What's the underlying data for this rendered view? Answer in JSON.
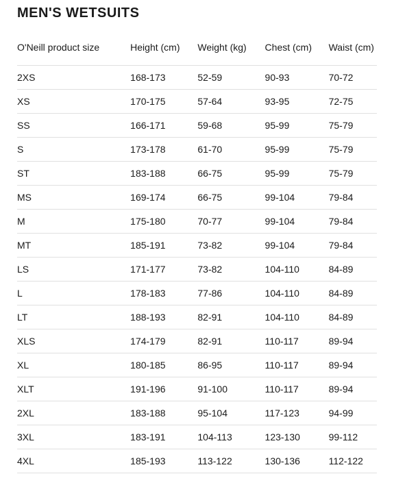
{
  "title": {
    "text": "MEN'S WETSUITS",
    "fontsize": 20,
    "color": "#1a1a1a"
  },
  "table": {
    "header_fontsize": 14,
    "header_color": "#1a1a1a",
    "cell_fontsize": 14,
    "cell_color": "#1a1a1a",
    "border_color": "#e0e0e0",
    "background_color": "#ffffff",
    "columns": [
      "O'Neill product size",
      "Height (cm)",
      "Weight (kg)",
      "Chest (cm)",
      "Waist (cm)"
    ],
    "rows": [
      [
        "2XS",
        "168-173",
        "52-59",
        "90-93",
        "70-72"
      ],
      [
        "XS",
        "170-175",
        "57-64",
        "93-95",
        "72-75"
      ],
      [
        "SS",
        "166-171",
        "59-68",
        "95-99",
        "75-79"
      ],
      [
        "S",
        "173-178",
        "61-70",
        "95-99",
        "75-79"
      ],
      [
        "ST",
        "183-188",
        "66-75",
        "95-99",
        "75-79"
      ],
      [
        "MS",
        "169-174",
        "66-75",
        "99-104",
        "79-84"
      ],
      [
        "M",
        "175-180",
        "70-77",
        "99-104",
        "79-84"
      ],
      [
        "MT",
        "185-191",
        "73-82",
        "99-104",
        "79-84"
      ],
      [
        "LS",
        "171-177",
        "73-82",
        "104-110",
        "84-89"
      ],
      [
        "L",
        "178-183",
        "77-86",
        "104-110",
        "84-89"
      ],
      [
        "LT",
        "188-193",
        "82-91",
        "104-110",
        "84-89"
      ],
      [
        "XLS",
        "174-179",
        "82-91",
        "110-117",
        "89-94"
      ],
      [
        "XL",
        "180-185",
        "86-95",
        "110-117",
        "89-94"
      ],
      [
        "XLT",
        "191-196",
        "91-100",
        "110-117",
        "89-94"
      ],
      [
        "2XL",
        "183-188",
        "95-104",
        "117-123",
        "94-99"
      ],
      [
        "3XL",
        "183-191",
        "104-113",
        "123-130",
        "99-112"
      ],
      [
        "4XL",
        "185-193",
        "113-122",
        "130-136",
        "112-122"
      ]
    ]
  }
}
